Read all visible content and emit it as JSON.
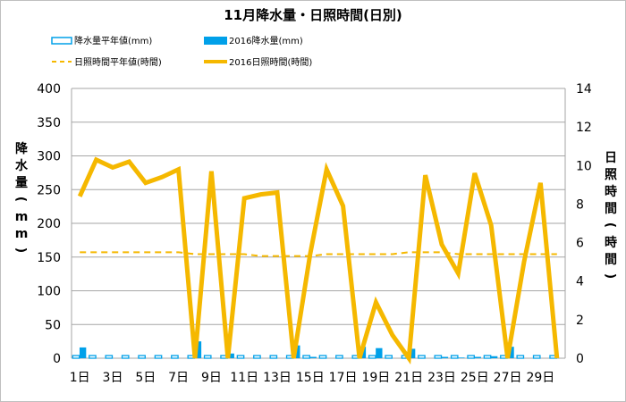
{
  "chart_data": {
    "type": "bar+line",
    "title": "11月降水量・日照時間(日別)",
    "legend": [
      {
        "label": "降水量平年値(mm)",
        "kind": "bar-outline",
        "color": "#00a0e9"
      },
      {
        "label": "2016降水量(mm)",
        "kind": "bar-filled",
        "color": "#00a0e9"
      },
      {
        "label": "日照時間平年値(時間)",
        "kind": "line-dashed",
        "color": "#f5b800"
      },
      {
        "label": "2016日照時間(時間)",
        "kind": "line-solid",
        "color": "#f5b800"
      }
    ],
    "ylabel_left": "降水量(mm)",
    "ylabel_right": "日照時間(時間)",
    "ylim_left": [
      0,
      400
    ],
    "yticks_left": [
      "0",
      "50",
      "100",
      "150",
      "200",
      "250",
      "300",
      "350",
      "400"
    ],
    "ylim_right": [
      0,
      14
    ],
    "yticks_right": [
      "0",
      "2",
      "4",
      "6",
      "8",
      "10",
      "12",
      "14"
    ],
    "x": [
      1,
      2,
      3,
      4,
      5,
      6,
      7,
      8,
      9,
      10,
      11,
      12,
      13,
      14,
      15,
      16,
      17,
      18,
      19,
      20,
      21,
      22,
      23,
      24,
      25,
      26,
      27,
      28,
      29,
      30
    ],
    "xtick_labels": [
      "1日",
      "3日",
      "5日",
      "7日",
      "9日",
      "11日",
      "13日",
      "15日",
      "17日",
      "19日",
      "21日",
      "23日",
      "25日",
      "27日",
      "29日"
    ],
    "grid": true,
    "series": [
      {
        "name": "降水量平年値(mm)",
        "axis": "left",
        "type": "bar-outline",
        "values": [
          4,
          4,
          4,
          4,
          4,
          4,
          4,
          4,
          4,
          4,
          4,
          4,
          4,
          4,
          4,
          4,
          4,
          4,
          4,
          4,
          4,
          4,
          4,
          4,
          4,
          4,
          4,
          4,
          4,
          4
        ]
      },
      {
        "name": "2016降水量(mm)",
        "axis": "left",
        "type": "bar-filled",
        "values": [
          16,
          0,
          0,
          0,
          0,
          0,
          0,
          25,
          0,
          7,
          0,
          0,
          0,
          19,
          2,
          0,
          0,
          17,
          15,
          0,
          14,
          0,
          2,
          1,
          2,
          3,
          17,
          0,
          0,
          0
        ]
      },
      {
        "name": "日照時間平年値(時間)",
        "axis": "right",
        "type": "line-dashed",
        "values": [
          5.5,
          5.5,
          5.5,
          5.5,
          5.5,
          5.5,
          5.5,
          5.4,
          5.4,
          5.4,
          5.4,
          5.3,
          5.3,
          5.3,
          5.3,
          5.4,
          5.4,
          5.4,
          5.4,
          5.4,
          5.5,
          5.5,
          5.5,
          5.4,
          5.4,
          5.4,
          5.4,
          5.4,
          5.4,
          5.4
        ]
      },
      {
        "name": "2016日照時間(時間)",
        "axis": "right",
        "type": "line-solid",
        "values": [
          8.4,
          10.3,
          9.9,
          10.2,
          9.1,
          9.4,
          9.8,
          0,
          9.7,
          0,
          8.3,
          8.5,
          8.6,
          0,
          5.4,
          9.8,
          7.9,
          0,
          2.9,
          1.2,
          0,
          9.5,
          5.9,
          4.4,
          9.6,
          6.9,
          0,
          5,
          9.1,
          0
        ]
      }
    ]
  }
}
